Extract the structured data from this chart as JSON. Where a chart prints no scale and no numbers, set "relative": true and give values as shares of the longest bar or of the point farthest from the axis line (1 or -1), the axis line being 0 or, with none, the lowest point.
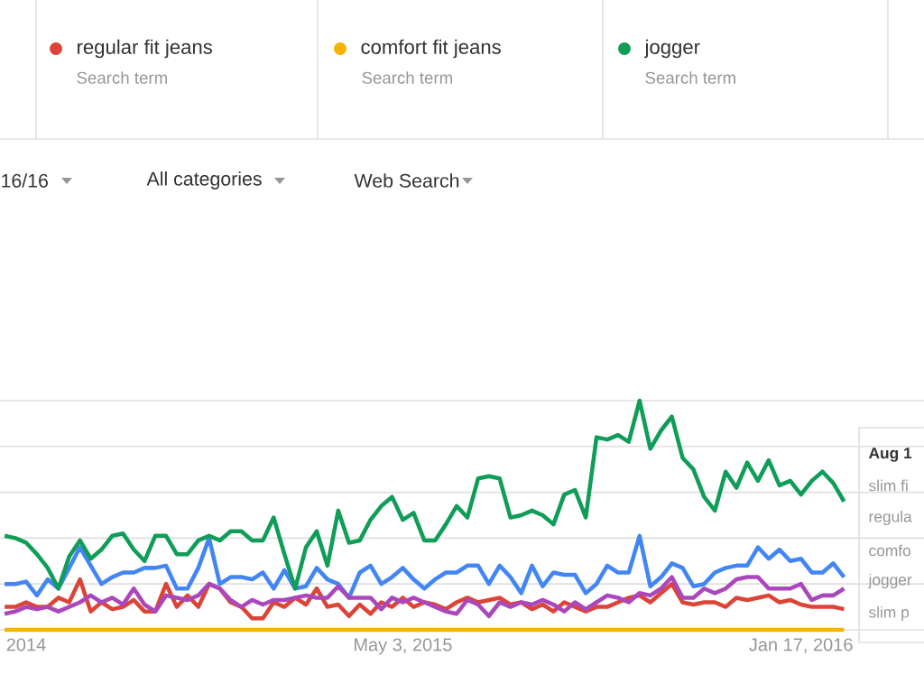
{
  "chart_data": {
    "type": "line",
    "relative": true,
    "grid": "y",
    "legend": "top",
    "tick_labels": "x",
    "x": [
      "2014-08-17",
      "2014-08-24",
      "2014-08-31",
      "2014-09-07",
      "2014-09-14",
      "2014-09-21",
      "2014-09-28",
      "2014-10-05",
      "2014-10-12",
      "2014-10-19",
      "2014-10-26",
      "2014-11-02",
      "2014-11-09",
      "2014-11-16",
      "2014-11-23",
      "2014-11-30",
      "2014-12-07",
      "2014-12-14",
      "2014-12-21",
      "2014-12-28",
      "2015-01-04",
      "2015-01-11",
      "2015-01-18",
      "2015-01-25",
      "2015-02-01",
      "2015-02-08",
      "2015-02-15",
      "2015-02-22",
      "2015-03-01",
      "2015-03-08",
      "2015-03-15",
      "2015-03-22",
      "2015-03-29",
      "2015-04-05",
      "2015-04-12",
      "2015-04-19",
      "2015-04-26",
      "2015-05-03",
      "2015-05-10",
      "2015-05-17",
      "2015-05-24",
      "2015-05-31",
      "2015-06-07",
      "2015-06-14",
      "2015-06-21",
      "2015-06-28",
      "2015-07-05",
      "2015-07-12",
      "2015-07-19",
      "2015-07-26",
      "2015-08-02",
      "2015-08-09",
      "2015-08-16",
      "2015-08-23",
      "2015-08-30",
      "2015-09-06",
      "2015-09-13",
      "2015-09-20",
      "2015-09-27",
      "2015-10-04",
      "2015-10-11",
      "2015-10-18",
      "2015-10-25",
      "2015-11-01",
      "2015-11-08",
      "2015-11-15",
      "2015-11-22",
      "2015-11-29",
      "2015-12-06",
      "2015-12-13",
      "2015-12-20",
      "2015-12-27",
      "2016-01-03",
      "2016-01-10",
      "2016-01-17",
      "2016-01-24",
      "2016-01-31",
      "2016-02-07",
      "2016-02-14"
    ],
    "xlim": [
      "2014-08-14",
      "2016-04-06"
    ],
    "xticks": [
      {
        "value": "2014-08-31",
        "label": "2014"
      },
      {
        "value": "2015-05-03",
        "label": "May 3, 2015"
      },
      {
        "value": "2016-01-17",
        "label": "Jan 17, 2016"
      }
    ],
    "series": [
      {
        "color": "#4285f4",
        "values": [
          0.2,
          0.2,
          0.21,
          0.15,
          0.22,
          0.18,
          0.27,
          0.36,
          0.28,
          0.2,
          0.23,
          0.25,
          0.25,
          0.27,
          0.27,
          0.28,
          0.18,
          0.18,
          0.27,
          0.4,
          0.2,
          0.23,
          0.23,
          0.22,
          0.25,
          0.18,
          0.26,
          0.18,
          0.19,
          0.27,
          0.22,
          0.2,
          0.14,
          0.25,
          0.28,
          0.2,
          0.23,
          0.27,
          0.22,
          0.18,
          0.22,
          0.25,
          0.25,
          0.28,
          0.28,
          0.2,
          0.28,
          0.23,
          0.16,
          0.28,
          0.19,
          0.25,
          0.24,
          0.24,
          0.16,
          0.2,
          0.28,
          0.25,
          0.25,
          0.41,
          0.19,
          0.23,
          0.29,
          0.27,
          0.19,
          0.2,
          0.25,
          0.27,
          0.28,
          0.28,
          0.36,
          0.31,
          0.35,
          0.3,
          0.31,
          0.25,
          0.25,
          0.29,
          0.23
        ]
      },
      {
        "name": "regular fit jeans",
        "color": "#db4437",
        "values": [
          0.1,
          0.1,
          0.12,
          0.1,
          0.1,
          0.14,
          0.12,
          0.22,
          0.08,
          0.12,
          0.09,
          0.1,
          0.13,
          0.08,
          0.08,
          0.2,
          0.1,
          0.15,
          0.1,
          0.2,
          0.18,
          0.12,
          0.1,
          0.05,
          0.05,
          0.12,
          0.1,
          0.14,
          0.11,
          0.18,
          0.1,
          0.11,
          0.06,
          0.11,
          0.07,
          0.12,
          0.1,
          0.14,
          0.1,
          0.12,
          0.11,
          0.09,
          0.12,
          0.14,
          0.12,
          0.13,
          0.14,
          0.11,
          0.12,
          0.09,
          0.11,
          0.08,
          0.12,
          0.1,
          0.08,
          0.1,
          0.1,
          0.12,
          0.14,
          0.15,
          0.12,
          0.16,
          0.2,
          0.12,
          0.11,
          0.12,
          0.12,
          0.1,
          0.14,
          0.13,
          0.14,
          0.15,
          0.12,
          0.13,
          0.11,
          0.1,
          0.1,
          0.1,
          0.09
        ]
      },
      {
        "name": "comfort fit jeans",
        "color": "#f4b400",
        "values": [
          0,
          0,
          0,
          0,
          0,
          0,
          0,
          0,
          0,
          0,
          0,
          0,
          0,
          0,
          0,
          0,
          0,
          0,
          0,
          0,
          0,
          0,
          0,
          0,
          0,
          0,
          0,
          0,
          0,
          0,
          0,
          0,
          0,
          0,
          0,
          0,
          0,
          0,
          0,
          0,
          0,
          0,
          0,
          0,
          0,
          0,
          0,
          0,
          0,
          0,
          0,
          0,
          0,
          0,
          0,
          0,
          0,
          0,
          0,
          0,
          0,
          0,
          0,
          0,
          0,
          0,
          0,
          0,
          0,
          0,
          0,
          0,
          0,
          0,
          0,
          0,
          0,
          0,
          0
        ]
      },
      {
        "name": "jogger",
        "color": "#0f9d58",
        "values": [
          0.41,
          0.4,
          0.38,
          0.33,
          0.27,
          0.18,
          0.32,
          0.39,
          0.31,
          0.35,
          0.41,
          0.42,
          0.35,
          0.3,
          0.41,
          0.41,
          0.33,
          0.33,
          0.39,
          0.41,
          0.39,
          0.43,
          0.43,
          0.39,
          0.39,
          0.49,
          0.33,
          0.18,
          0.36,
          0.43,
          0.28,
          0.52,
          0.38,
          0.39,
          0.48,
          0.54,
          0.58,
          0.48,
          0.51,
          0.39,
          0.39,
          0.46,
          0.54,
          0.49,
          0.66,
          0.67,
          0.66,
          0.49,
          0.5,
          0.52,
          0.5,
          0.46,
          0.59,
          0.61,
          0.49,
          0.84,
          0.83,
          0.85,
          0.82,
          1,
          0.79,
          0.87,
          0.93,
          0.75,
          0.7,
          0.58,
          0.52,
          0.69,
          0.62,
          0.73,
          0.65,
          0.74,
          0.63,
          0.65,
          0.59,
          0.65,
          0.69,
          0.64,
          0.56
        ]
      },
      {
        "color": "#ab47bc",
        "values": [
          0.07,
          0.08,
          0.1,
          0.09,
          0.1,
          0.08,
          0.1,
          0.12,
          0.15,
          0.12,
          0.14,
          0.11,
          0.18,
          0.11,
          0.08,
          0.15,
          0.14,
          0.13,
          0.15,
          0.2,
          0.18,
          0.13,
          0.1,
          0.13,
          0.11,
          0.13,
          0.13,
          0.14,
          0.15,
          0.14,
          0.14,
          0.19,
          0.14,
          0.14,
          0.14,
          0.09,
          0.14,
          0.12,
          0.14,
          0.12,
          0.1,
          0.08,
          0.07,
          0.13,
          0.11,
          0.06,
          0.12,
          0.1,
          0.12,
          0.11,
          0.13,
          0.11,
          0.08,
          0.12,
          0.09,
          0.12,
          0.15,
          0.14,
          0.12,
          0.16,
          0.15,
          0.18,
          0.23,
          0.14,
          0.14,
          0.18,
          0.16,
          0.18,
          0.22,
          0.23,
          0.23,
          0.18,
          0.18,
          0.18,
          0.2,
          0.13,
          0.15,
          0.15,
          0.18
        ]
      }
    ],
    "annotations": [
      "Search term",
      "Search term",
      "Search term",
      "16/16",
      "All categories",
      "Web Search",
      "Aug 1",
      "slim fi",
      "regula",
      "comfo",
      "jogger",
      "slim p"
    ]
  }
}
